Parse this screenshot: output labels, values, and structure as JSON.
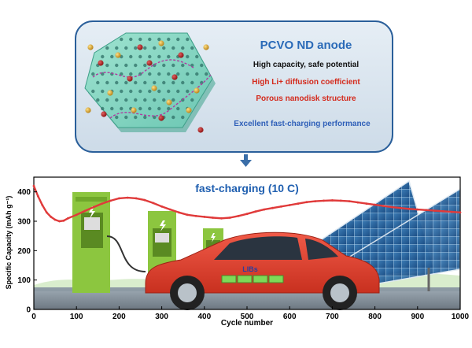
{
  "top_panel": {
    "title": "PCVO ND anode",
    "lines": [
      {
        "text": "High capacity, safe potential",
        "color": "#111111"
      },
      {
        "text": "High Li+ diffusion coefficient",
        "color": "#d42a1c"
      },
      {
        "text": "Porous nanodisk structure",
        "color": "#d42a1c"
      },
      {
        "text": "Excellent fast-charging performance",
        "color": "#2f5fb8"
      }
    ],
    "title_color": "#2a6ab8",
    "border_color": "#2a5f9a",
    "fill_color": "#dbe6f0"
  },
  "arrow_color": "#3a6ea8",
  "chart_data": {
    "type": "line",
    "title": "fast-charging (10 C)",
    "xlabel": "Cycle number",
    "ylabel": "Specific Capacity (mAh g⁻¹)",
    "xlim": [
      0,
      1000
    ],
    "ylim": [
      0,
      450
    ],
    "xticks": [
      0,
      100,
      200,
      300,
      400,
      500,
      600,
      700,
      800,
      900,
      1000
    ],
    "yticks": [
      0,
      100,
      200,
      300,
      400
    ],
    "series": [
      {
        "color": "#e03a3a",
        "x": [
          0,
          10,
          20,
          30,
          40,
          50,
          60,
          70,
          80,
          100,
          120,
          140,
          160,
          180,
          200,
          220,
          240,
          260,
          280,
          300,
          320,
          340,
          360,
          380,
          400,
          420,
          440,
          460,
          480,
          500,
          520,
          540,
          560,
          580,
          600,
          620,
          640,
          660,
          680,
          700,
          720,
          740,
          760,
          780,
          800,
          820,
          840,
          860,
          880,
          900,
          920,
          940,
          960,
          980,
          1000
        ],
        "y": [
          420,
          385,
          355,
          330,
          315,
          305,
          300,
          302,
          310,
          322,
          335,
          348,
          360,
          370,
          378,
          380,
          378,
          372,
          362,
          350,
          340,
          330,
          322,
          318,
          315,
          312,
          310,
          312,
          318,
          325,
          333,
          340,
          345,
          350,
          355,
          360,
          365,
          368,
          370,
          371,
          370,
          368,
          364,
          360,
          356,
          352,
          348,
          345,
          342,
          340,
          338,
          336,
          334,
          332,
          330
        ]
      }
    ],
    "car_label": "LIBs"
  }
}
